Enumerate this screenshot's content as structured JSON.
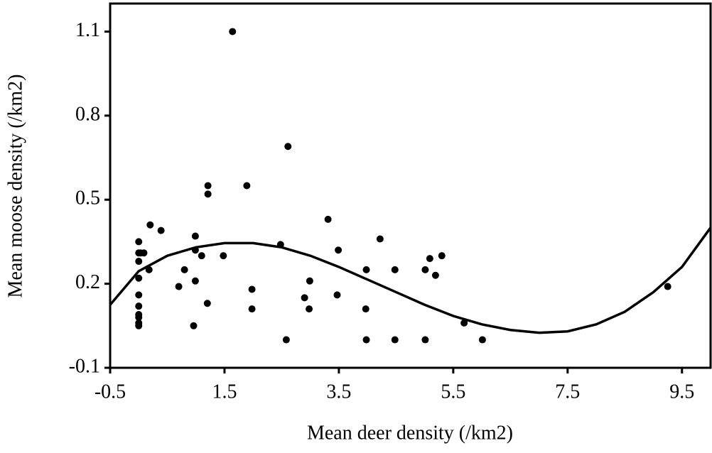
{
  "chart_data": {
    "type": "scatter",
    "xlabel": "Mean deer density (/km2)",
    "ylabel": "Mean moose density (/km2)",
    "xlim": [
      -0.5,
      10
    ],
    "ylim": [
      -0.1,
      1.2
    ],
    "xticks": [
      -0.5,
      1.5,
      3.5,
      5.5,
      7.5,
      9.5
    ],
    "yticks": [
      -0.1,
      0.2,
      0.5,
      0.8,
      1.1
    ],
    "color": "#000000",
    "x": [
      0.0,
      0.0,
      0.0,
      0.0,
      0.0,
      0.0,
      0.0,
      0.0,
      0.0,
      0.0,
      0.03,
      0.09,
      0.2,
      0.18,
      0.39,
      0.7,
      0.8,
      0.99,
      0.99,
      0.99,
      0.96,
      1.1,
      1.21,
      1.21,
      1.2,
      1.48,
      1.64,
      1.89,
      1.98,
      1.98,
      2.48,
      2.58,
      2.61,
      2.9,
      2.99,
      2.98,
      3.31,
      3.49,
      3.47,
      3.98,
      3.97,
      3.98,
      4.22,
      4.48,
      4.48,
      5.01,
      5.01,
      5.09,
      5.19,
      5.3,
      5.69,
      6.01,
      9.25
    ],
    "values": [
      0.35,
      0.31,
      0.28,
      0.22,
      0.16,
      0.12,
      0.09,
      0.08,
      0.06,
      0.05,
      0.31,
      0.31,
      0.41,
      0.25,
      0.39,
      0.19,
      0.25,
      0.37,
      0.32,
      0.21,
      0.05,
      0.3,
      0.55,
      0.52,
      0.13,
      0.3,
      1.1,
      0.55,
      0.18,
      0.11,
      0.34,
      0.0,
      0.69,
      0.15,
      0.21,
      0.11,
      0.43,
      0.32,
      0.16,
      0.25,
      0.11,
      0.0,
      0.36,
      0.25,
      0.0,
      0.25,
      0.0,
      0.29,
      0.23,
      0.3,
      0.06,
      0.0,
      0.19
    ],
    "curve": {
      "x": [
        -0.5,
        0,
        0.5,
        1,
        1.5,
        2,
        2.5,
        3,
        3.5,
        4,
        4.5,
        5,
        5.5,
        6,
        6.5,
        7,
        7.5,
        8,
        8.5,
        9,
        9.5,
        10
      ],
      "values": [
        0.125,
        0.245,
        0.3,
        0.33,
        0.345,
        0.345,
        0.33,
        0.3,
        0.26,
        0.215,
        0.17,
        0.125,
        0.085,
        0.055,
        0.035,
        0.025,
        0.03,
        0.055,
        0.1,
        0.17,
        0.26,
        0.4
      ]
    }
  }
}
